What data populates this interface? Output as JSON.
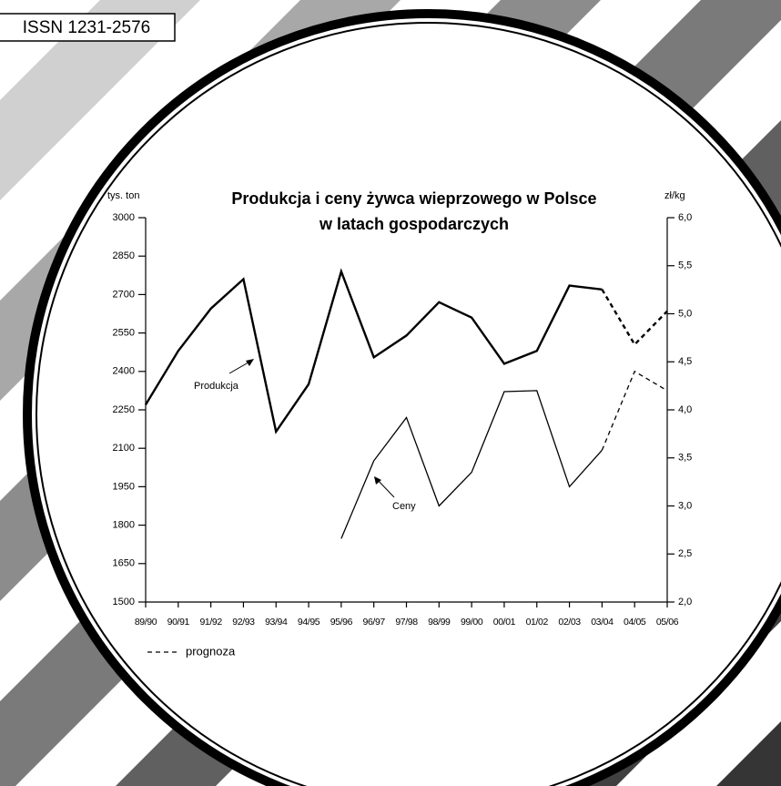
{
  "issn": "ISSN 1231-2576",
  "chart_data": {
    "type": "line",
    "title_lines": [
      "Produkcja i ceny żywca wieprzowego w Polsce",
      "w latach gospodarczych"
    ],
    "y_label": "tys. ton",
    "y2_label": "zł/kg",
    "categories": [
      "89/90",
      "90/91",
      "91/92",
      "92/93",
      "93/94",
      "94/95",
      "95/96",
      "96/97",
      "97/98",
      "98/99",
      "99/00",
      "00/01",
      "01/02",
      "02/03",
      "03/04",
      "04/05",
      "05/06"
    ],
    "ylim": [
      1500,
      3000
    ],
    "yticks": [
      1500,
      1650,
      1800,
      1950,
      2100,
      2250,
      2400,
      2550,
      2700,
      2850,
      3000
    ],
    "y2lim": [
      2,
      6
    ],
    "y2ticks": [
      {
        "value": 2,
        "label": "2,0"
      },
      {
        "value": 2.5,
        "label": "2,5"
      },
      {
        "value": 3,
        "label": "3,0"
      },
      {
        "value": 3.5,
        "label": "3,5"
      },
      {
        "value": 4,
        "label": "4,0"
      },
      {
        "value": 4.5,
        "label": "4,5"
      },
      {
        "value": 5,
        "label": "5,0"
      },
      {
        "value": 5.5,
        "label": "5,5"
      },
      {
        "value": 6,
        "label": "6,0"
      }
    ],
    "forecast_from": 14,
    "forecast_label": "prognoza",
    "series": [
      {
        "name": "Produkcja",
        "color": "#000000",
        "width": 2.4,
        "axis": "y",
        "values": [
          2270,
          2480,
          2645,
          2760,
          2165,
          2350,
          2790,
          2455,
          2540,
          2670,
          2610,
          2430,
          2480,
          2735,
          2720,
          2505,
          2635
        ]
      },
      {
        "name": "Ceny",
        "color": "#000000",
        "width": 1.3,
        "axis": "y2",
        "values": [
          null,
          null,
          null,
          null,
          null,
          null,
          2.66,
          3.47,
          3.92,
          3.0,
          3.35,
          4.19,
          4.2,
          3.2,
          3.58,
          4.4,
          4.2
        ]
      }
    ]
  }
}
